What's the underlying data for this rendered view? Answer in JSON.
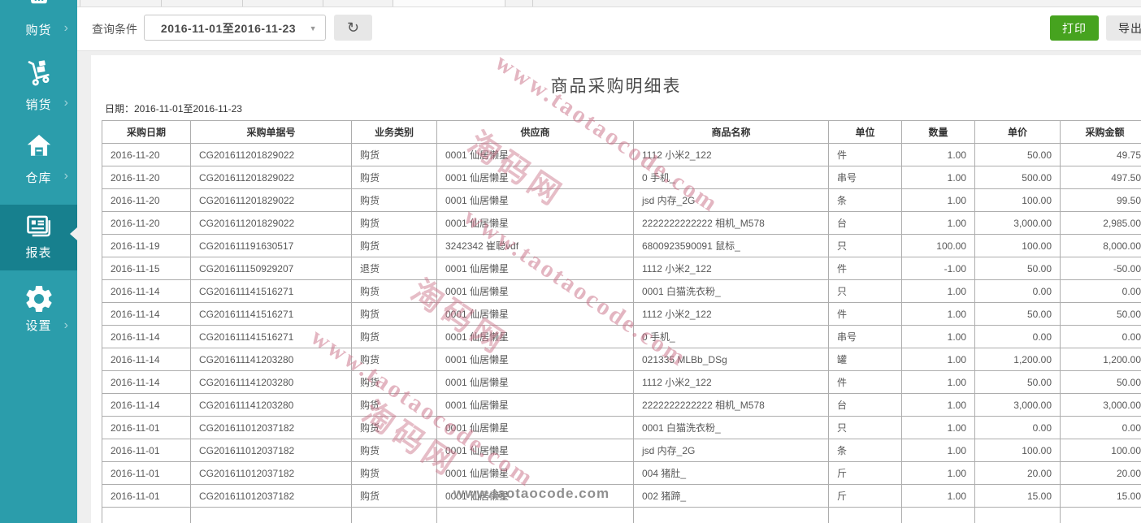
{
  "sidebar": {
    "items": [
      {
        "label": "购货",
        "icon": "basket-icon",
        "active": false
      },
      {
        "label": "销货",
        "icon": "trolley-icon",
        "active": false
      },
      {
        "label": "仓库",
        "icon": "warehouse-icon",
        "active": false
      },
      {
        "label": "报表",
        "icon": "report-icon",
        "active": true
      },
      {
        "label": "设置",
        "icon": "gear-icon",
        "active": false
      }
    ]
  },
  "toolbar": {
    "query_label": "查询条件",
    "date_range_value": "2016-11-01至2016-11-23",
    "print_label": "打印",
    "export_label": "导出"
  },
  "icons": {
    "refresh": "↻",
    "dropdown_caret": "▼",
    "chevron": "›"
  },
  "report": {
    "title": "商品采购明细表",
    "date_line": "日期：2016-11-01至2016-11-23"
  },
  "table": {
    "headers": [
      "采购日期",
      "采购单据号",
      "业务类别",
      "供应商",
      "商品名称",
      "单位",
      "数量",
      "单价",
      "采购金额"
    ],
    "rows": [
      [
        "2016-11-20",
        "CG201611201829022",
        "购货",
        "0001 仙居懒星",
        "1112 小米2_122",
        "件",
        "1.00",
        "50.00",
        "49.75"
      ],
      [
        "2016-11-20",
        "CG201611201829022",
        "购货",
        "0001 仙居懒星",
        "0 手机_",
        "串号",
        "1.00",
        "500.00",
        "497.50"
      ],
      [
        "2016-11-20",
        "CG201611201829022",
        "购货",
        "0001 仙居懒星",
        "jsd 内存_2G",
        "条",
        "1.00",
        "100.00",
        "99.50"
      ],
      [
        "2016-11-20",
        "CG201611201829022",
        "购货",
        "0001 仙居懒星",
        "2222222222222 相机_M578",
        "台",
        "1.00",
        "3,000.00",
        "2,985.00"
      ],
      [
        "2016-11-19",
        "CG201611191630517",
        "购货",
        "3242342 崔聪vdf",
        "6800923590091 鼠标_",
        "只",
        "100.00",
        "100.00",
        "8,000.00"
      ],
      [
        "2016-11-15",
        "CG201611150929207",
        "退货",
        "0001 仙居懒星",
        "1112 小米2_122",
        "件",
        "-1.00",
        "50.00",
        "-50.00"
      ],
      [
        "2016-11-14",
        "CG201611141516271",
        "购货",
        "0001 仙居懒星",
        "0001 白猫洗衣粉_",
        "只",
        "1.00",
        "0.00",
        "0.00"
      ],
      [
        "2016-11-14",
        "CG201611141516271",
        "购货",
        "0001 仙居懒星",
        "1112 小米2_122",
        "件",
        "1.00",
        "50.00",
        "50.00"
      ],
      [
        "2016-11-14",
        "CG201611141516271",
        "购货",
        "0001 仙居懒星",
        "0 手机_",
        "串号",
        "1.00",
        "0.00",
        "0.00"
      ],
      [
        "2016-11-14",
        "CG201611141203280",
        "购货",
        "0001 仙居懒星",
        "021335 MLBb_DSg",
        "罐",
        "1.00",
        "1,200.00",
        "1,200.00"
      ],
      [
        "2016-11-14",
        "CG201611141203280",
        "购货",
        "0001 仙居懒星",
        "1112 小米2_122",
        "件",
        "1.00",
        "50.00",
        "50.00"
      ],
      [
        "2016-11-14",
        "CG201611141203280",
        "购货",
        "0001 仙居懒星",
        "2222222222222 相机_M578",
        "台",
        "1.00",
        "3,000.00",
        "3,000.00"
      ],
      [
        "2016-11-01",
        "CG201611012037182",
        "购货",
        "0001 仙居懒星",
        "0001 白猫洗衣粉_",
        "只",
        "1.00",
        "0.00",
        "0.00"
      ],
      [
        "2016-11-01",
        "CG201611012037182",
        "购货",
        "0001 仙居懒星",
        "jsd 内存_2G",
        "条",
        "1.00",
        "100.00",
        "100.00"
      ],
      [
        "2016-11-01",
        "CG201611012037182",
        "购货",
        "0001 仙居懒星",
        "004 猪肚_",
        "斤",
        "1.00",
        "20.00",
        "20.00"
      ],
      [
        "2016-11-01",
        "CG201611012037182",
        "购货",
        "0001 仙居懒星",
        "002 猪蹄_",
        "斤",
        "1.00",
        "15.00",
        "15.00"
      ],
      [
        "",
        "",
        "",
        "",
        "",
        "",
        "",
        "",
        ""
      ]
    ]
  },
  "watermarks": {
    "site": "www.taotaocode.com",
    "brand": "淘码网",
    "footer": "www.taotaocode.com"
  },
  "colors": {
    "sidebar_teal": "#2b9dab",
    "sidebar_active": "#17808e",
    "print_green": "#46a31f",
    "watermark_pink": "#c86e84"
  }
}
